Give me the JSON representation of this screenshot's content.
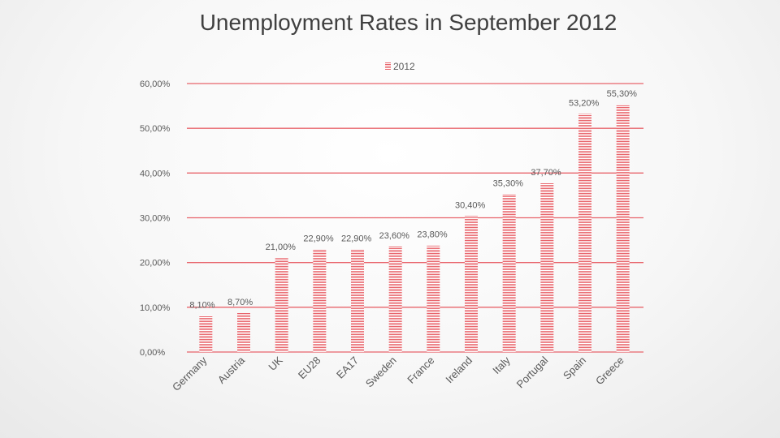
{
  "chart_data": {
    "type": "bar",
    "title": "Unemployment Rates in September 2012",
    "categories": [
      "Germany",
      "Austria",
      "UK",
      "EU28",
      "EA17",
      "Sweden",
      "France",
      "Ireland",
      "Italy",
      "Portugal",
      "Spain",
      "Greece"
    ],
    "series": [
      {
        "name": "2012",
        "values": [
          8.1,
          8.7,
          21.0,
          22.9,
          22.9,
          23.6,
          23.8,
          30.4,
          35.3,
          37.7,
          53.2,
          55.3
        ],
        "labels": [
          "8,10%",
          "8,70%",
          "21,00%",
          "22,90%",
          "22,90%",
          "23,60%",
          "23,80%",
          "30,40%",
          "35,30%",
          "37,70%",
          "53,20%",
          "55,30%"
        ]
      }
    ],
    "y_ticks": [
      0,
      10,
      20,
      30,
      40,
      50,
      60
    ],
    "y_tick_labels": [
      "0,00%",
      "10,00%",
      "20,00%",
      "30,00%",
      "40,00%",
      "50,00%",
      "60,00%"
    ],
    "ylim": [
      0,
      60
    ],
    "grid": true,
    "legend_position": "top-center",
    "colors": {
      "bar": "#e8646b",
      "grid": "#e8646b"
    }
  }
}
